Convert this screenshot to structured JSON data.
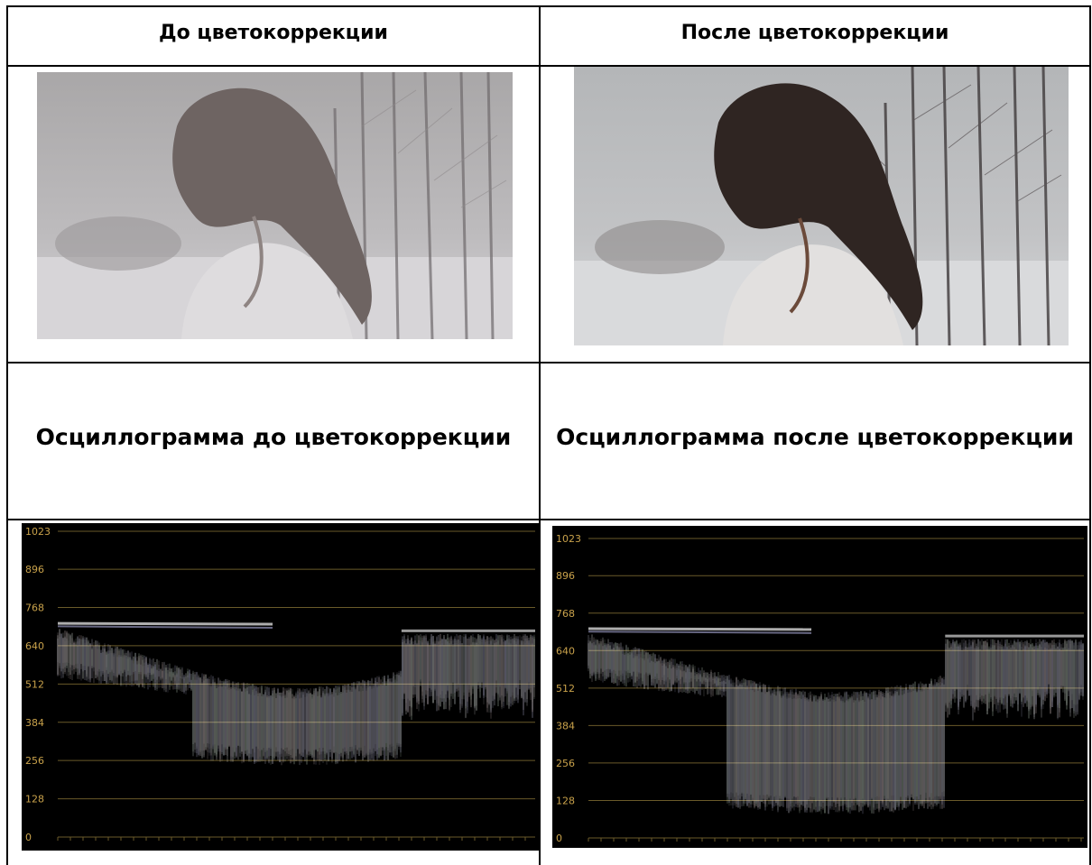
{
  "table": {
    "header_before": "До цветокоррекции",
    "header_after": "После цветокоррекции",
    "scope_title_before": "Осциллограмма до цветокоррекции",
    "scope_title_after": "Осциллограмма после цветокоррекции"
  },
  "photos": {
    "before": {
      "description_icon": "snow-portrait-image",
      "tone": "flat-grey"
    },
    "after": {
      "description_icon": "snow-portrait-image",
      "tone": "contrast"
    }
  },
  "waveform": {
    "scale_labels": [
      "1023",
      "896",
      "768",
      "640",
      "512",
      "384",
      "256",
      "128",
      "0"
    ],
    "scale_values": [
      1023,
      896,
      768,
      640,
      512,
      384,
      256,
      128,
      0
    ],
    "colors": {
      "background": "#000000",
      "grid": "#6a5a2a",
      "label": "#c9a24b",
      "trace": "#ffffff"
    }
  }
}
